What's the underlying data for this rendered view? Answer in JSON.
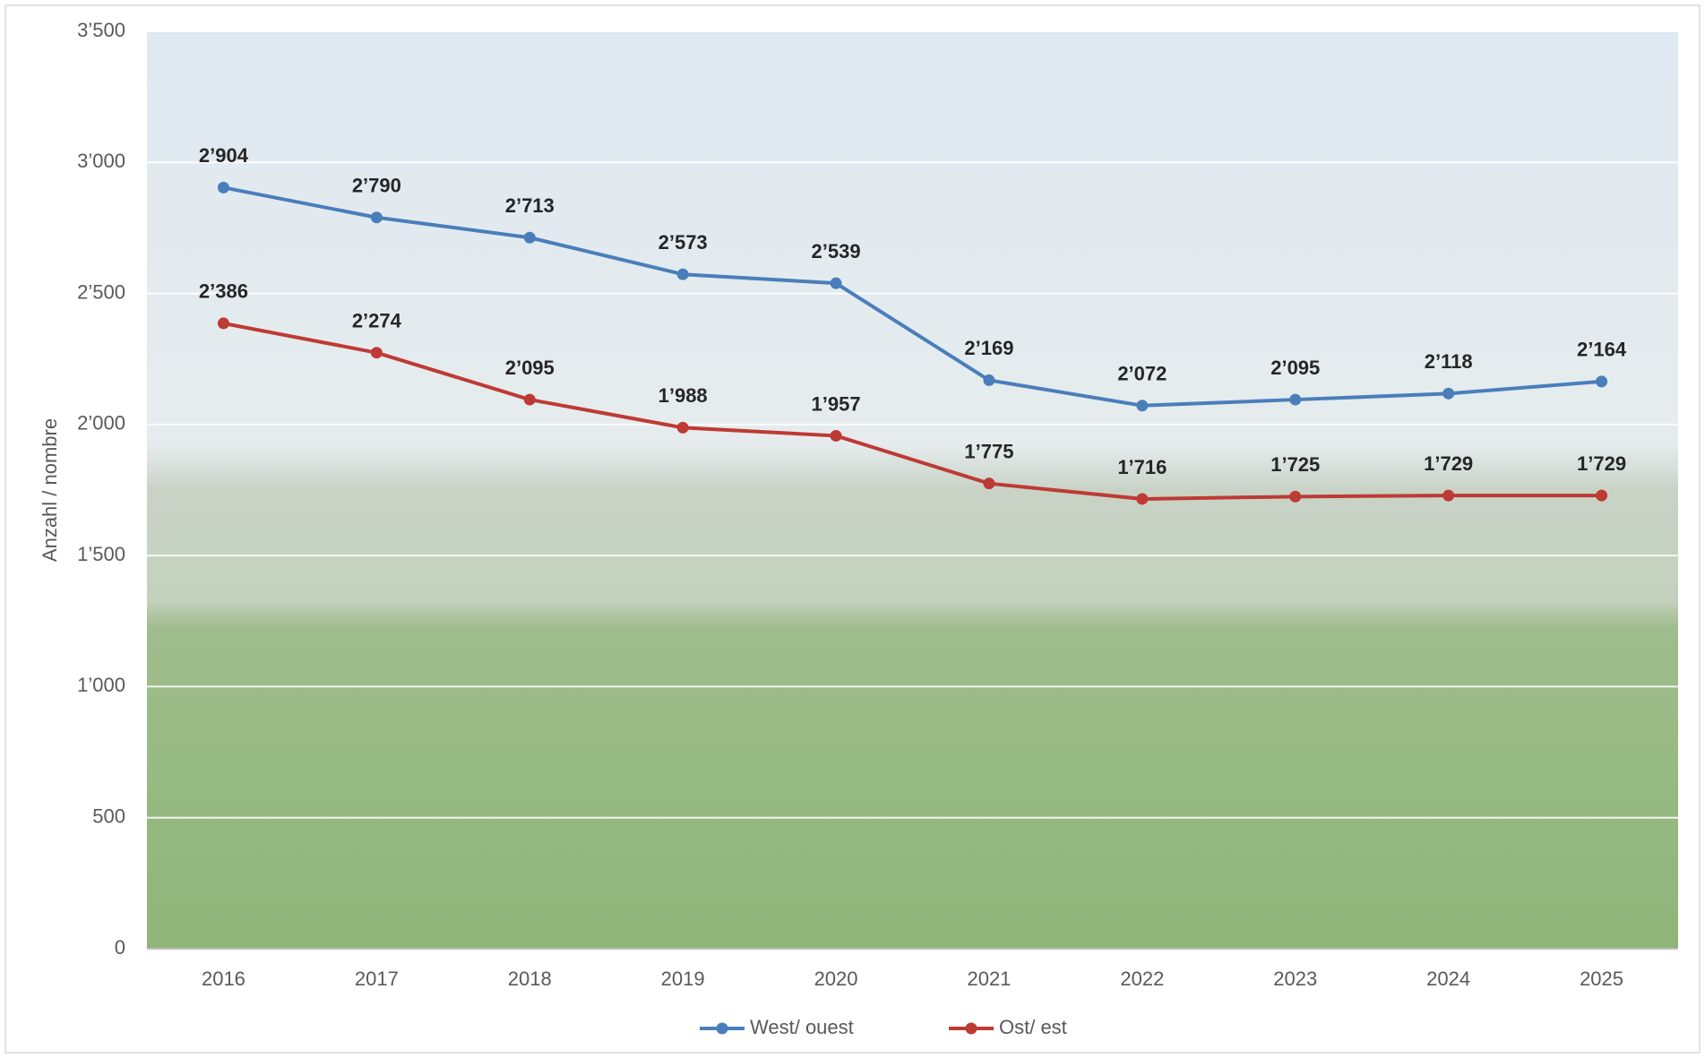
{
  "chart_data": {
    "type": "line",
    "y_label": "Anzahl / nombre",
    "categories": [
      "2016",
      "2017",
      "2018",
      "2019",
      "2020",
      "2021",
      "2022",
      "2023",
      "2024",
      "2025"
    ],
    "series": [
      {
        "name": "West/ ouest",
        "color": "#4a7ebb",
        "values": [
          2904,
          2790,
          2713,
          2573,
          2539,
          2169,
          2072,
          2095,
          2118,
          2164
        ],
        "value_labels": [
          "2’904",
          "2’790",
          "2’713",
          "2’573",
          "2’539",
          "2’169",
          "2’072",
          "2’095",
          "2’118",
          "2’164"
        ]
      },
      {
        "name": "Ost/ est",
        "color": "#be3a34",
        "values": [
          2386,
          2274,
          2095,
          1988,
          1957,
          1775,
          1716,
          1725,
          1729,
          1729
        ],
        "value_labels": [
          "2’386",
          "2’274",
          "2’095",
          "1’988",
          "1’957",
          "1’775",
          "1’716",
          "1’725",
          "1’729",
          "1’729"
        ]
      }
    ],
    "ylim": [
      0,
      3500
    ],
    "yticks": [
      0,
      500,
      {
        "value": 1000,
        "label": "1’000"
      },
      {
        "value": 1500,
        "label": "1’500"
      },
      {
        "value": 2000,
        "label": "2’000"
      },
      {
        "value": 2500,
        "label": "2’500"
      },
      {
        "value": 3000,
        "label": "3’000"
      },
      {
        "value": 3500,
        "label": "3’500"
      }
    ],
    "grid": true,
    "legend": "bottom"
  }
}
